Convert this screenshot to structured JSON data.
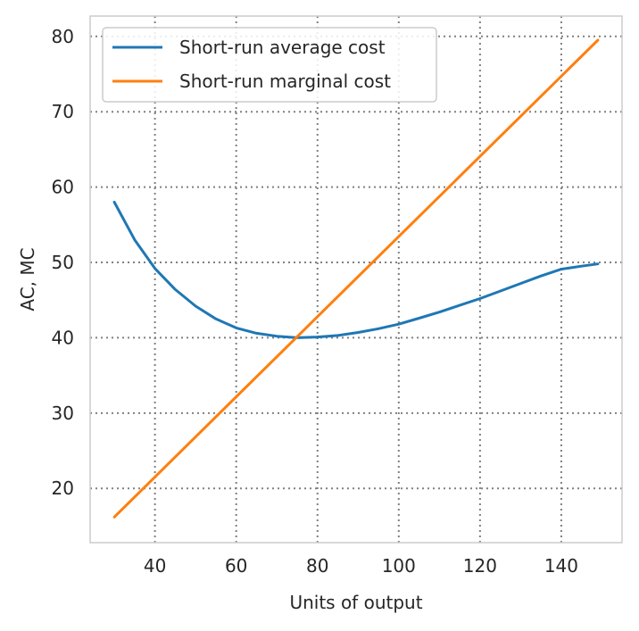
{
  "chart_data": {
    "type": "line",
    "xlabel": "Units of output",
    "ylabel": "AC, MC",
    "xlim": [
      24.05,
      154.95
    ],
    "ylim": [
      12.8,
      82.7
    ],
    "xticks": [
      40,
      60,
      80,
      100,
      120,
      140
    ],
    "yticks": [
      20,
      30,
      40,
      50,
      60,
      70,
      80
    ],
    "grid": true,
    "legend_position": "upper-left",
    "series": [
      {
        "name": "Short-run average cost",
        "color": "#1f77b4",
        "x": [
          30,
          35,
          40,
          45,
          50,
          55,
          60,
          65,
          70,
          75,
          80,
          85,
          90,
          95,
          100,
          105,
          110,
          115,
          120,
          125,
          130,
          135,
          140,
          145,
          149
        ],
        "y": [
          58.0,
          53.0,
          49.2,
          46.4,
          44.2,
          42.5,
          41.3,
          40.6,
          40.2,
          40.0,
          40.1,
          40.3,
          40.7,
          41.2,
          41.8,
          42.6,
          43.4,
          44.3,
          45.2,
          46.2,
          47.2,
          48.2,
          49.1,
          49.5,
          49.8
        ]
      },
      {
        "name": "Short-run marginal cost",
        "color": "#ff7f0e",
        "x": [
          30,
          149
        ],
        "y": [
          16.2,
          79.5
        ]
      }
    ]
  }
}
